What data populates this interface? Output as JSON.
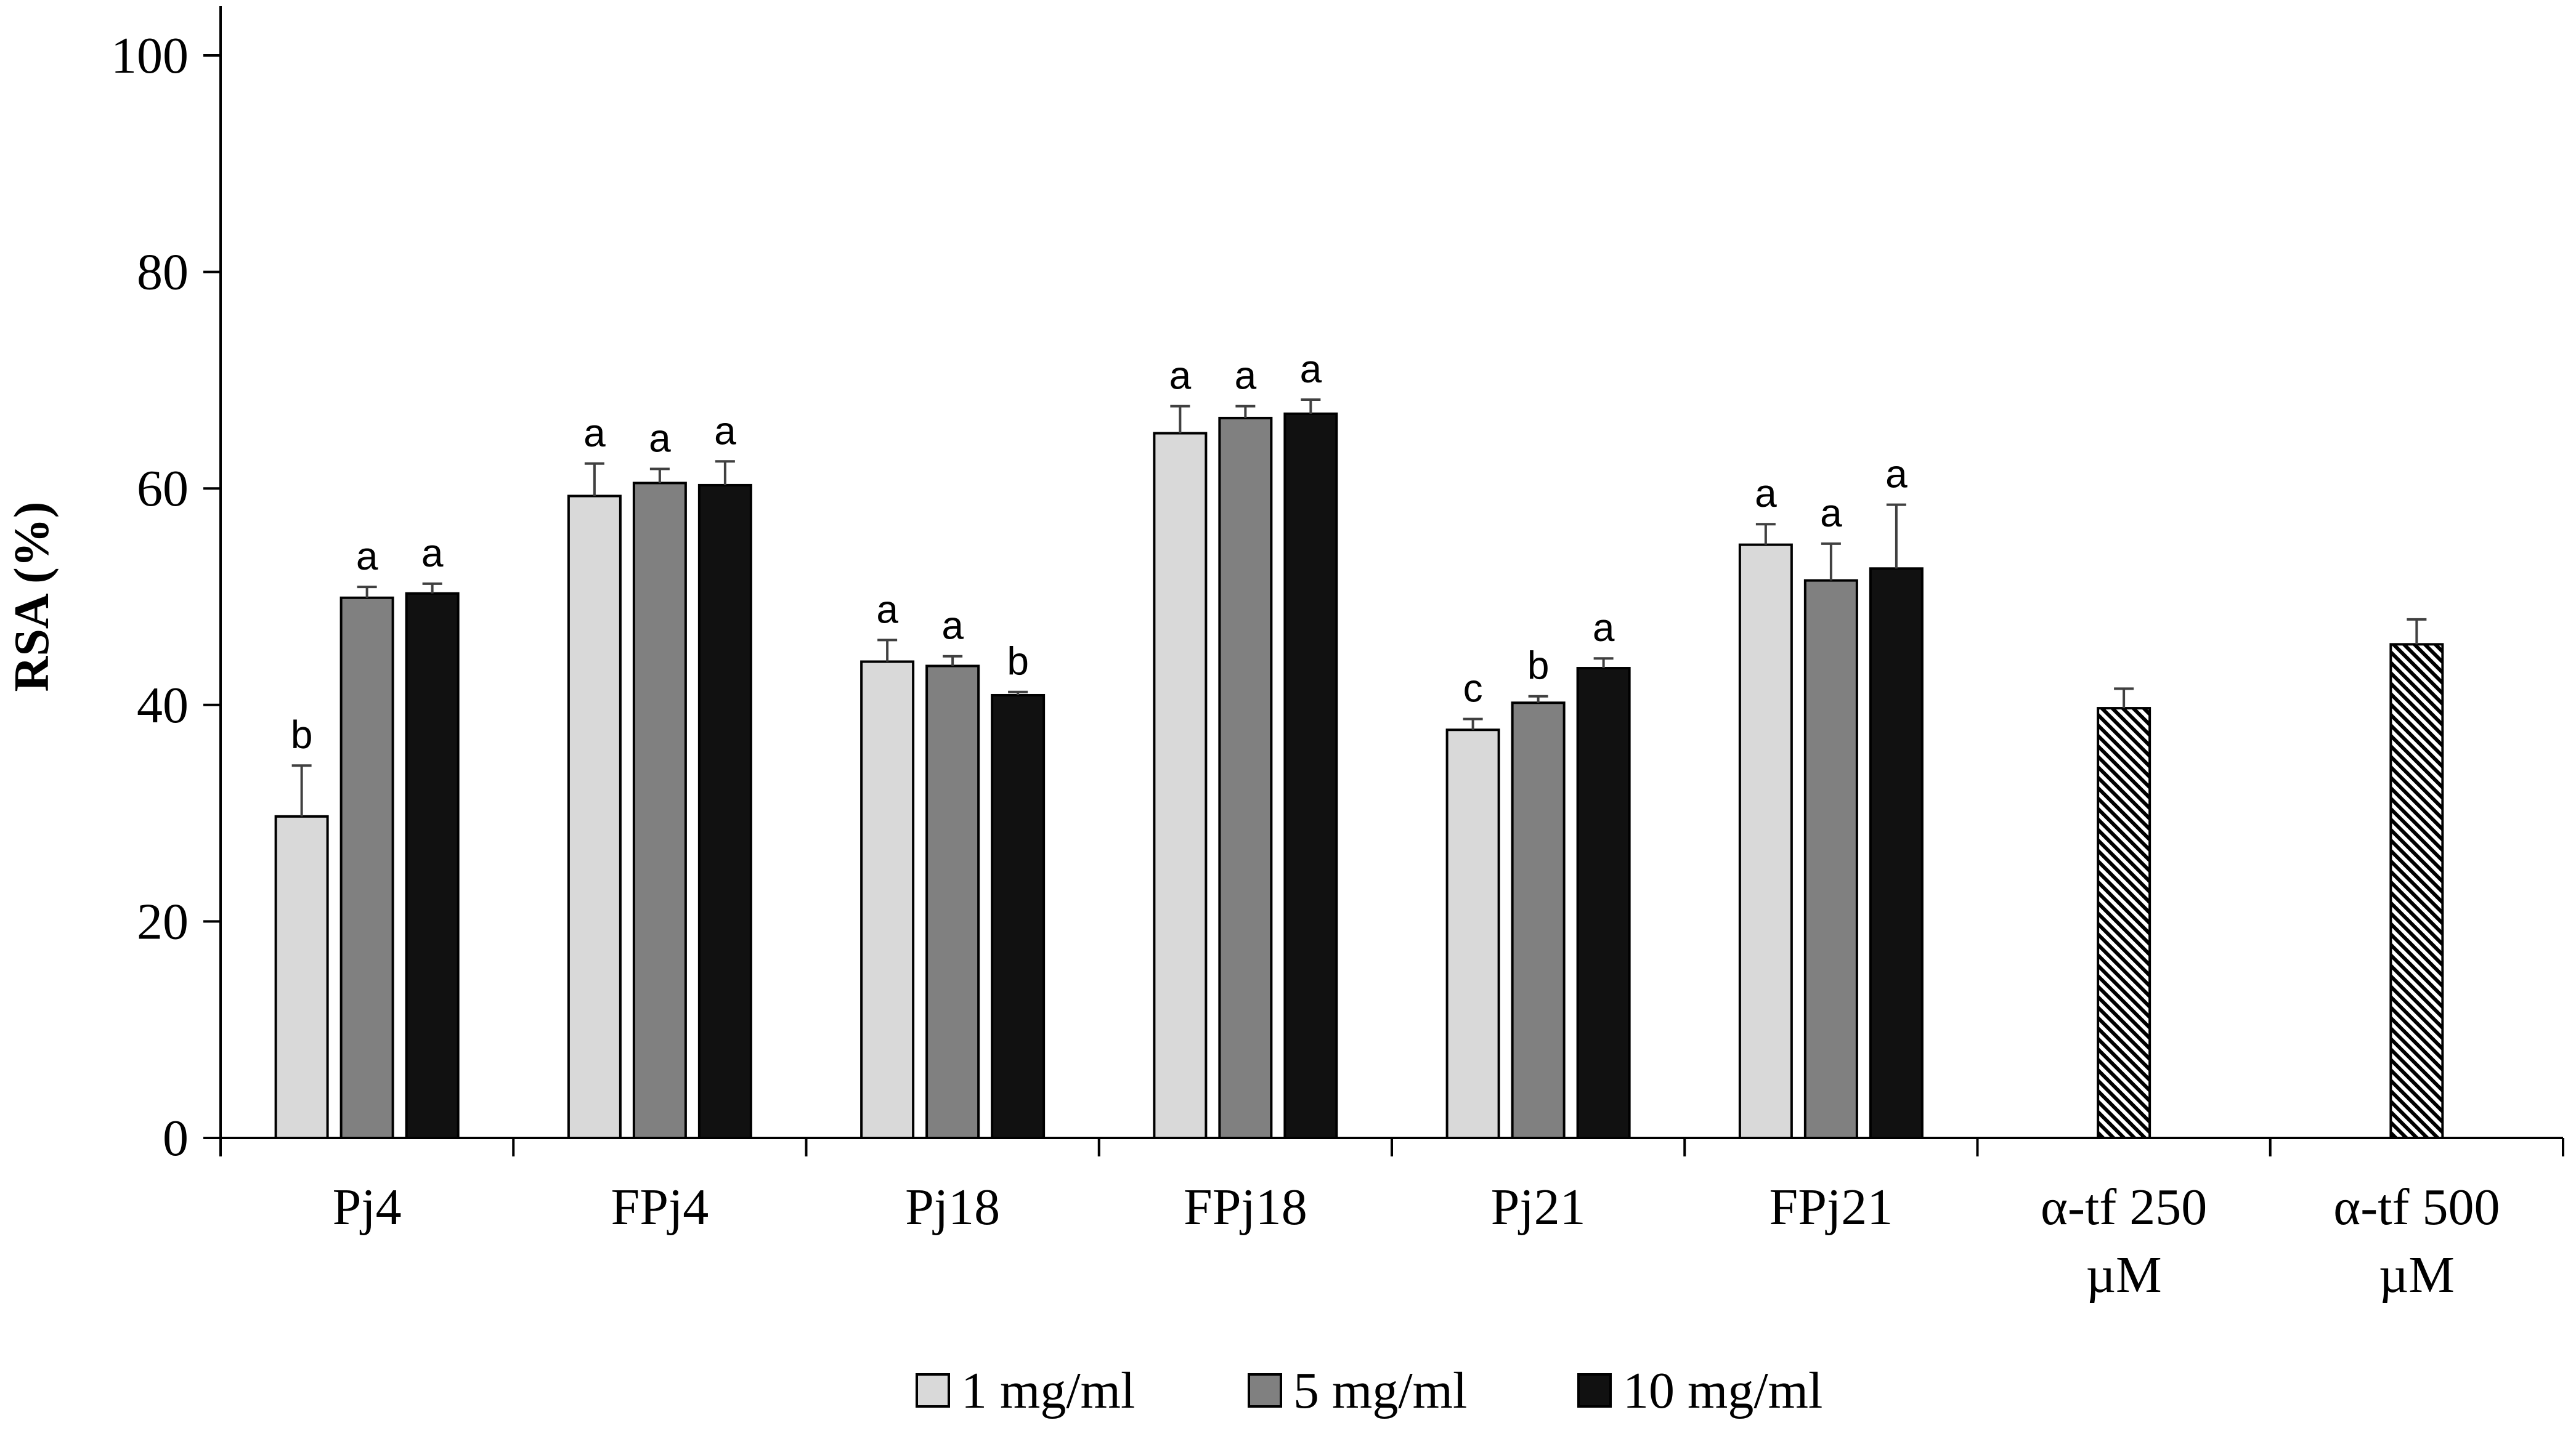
{
  "chart_data": {
    "type": "bar",
    "title": "",
    "ylabel": "RSA (%)",
    "xlabel": "",
    "ylim": [
      0,
      100
    ],
    "yticks": [
      0,
      20,
      40,
      60,
      80,
      100
    ],
    "grid": false,
    "categories": [
      "Pj4",
      "FPj4",
      "Pj18",
      "FPj18",
      "Pj21",
      "FPj21",
      "α-tf 250 µM",
      "α-tf 500 µM"
    ],
    "series": [
      {
        "name": "1 mg/ml",
        "color": "#d9d9d9",
        "values": [
          29.7,
          59.3,
          44.0,
          65.1,
          37.7,
          54.8,
          null,
          null
        ],
        "errors": [
          4.7,
          3.0,
          2.0,
          2.5,
          1.0,
          1.9,
          null,
          null
        ],
        "letters": [
          "b",
          "a",
          "a",
          "a",
          "c",
          "a",
          null,
          null
        ]
      },
      {
        "name": "5 mg/ml",
        "color": "#808080",
        "values": [
          49.9,
          60.5,
          43.6,
          66.5,
          40.2,
          51.5,
          null,
          null
        ],
        "errors": [
          1.0,
          1.3,
          0.9,
          1.1,
          0.6,
          3.4,
          null,
          null
        ],
        "letters": [
          "a",
          "a",
          "a",
          "a",
          "b",
          "a",
          null,
          null
        ]
      },
      {
        "name": "10 mg/ml",
        "color": "#111111",
        "values": [
          50.3,
          60.3,
          40.9,
          66.9,
          43.4,
          52.6,
          null,
          null
        ],
        "errors": [
          0.9,
          2.2,
          0.3,
          1.3,
          0.9,
          5.9,
          null,
          null
        ],
        "letters": [
          "a",
          "a",
          "b",
          "a",
          "a",
          "a",
          null,
          null
        ]
      }
    ],
    "reference": {
      "name": "α-tf",
      "pattern": "diagonal-hatch",
      "values": [
        null,
        null,
        null,
        null,
        null,
        null,
        39.7,
        45.6
      ],
      "errors": [
        null,
        null,
        null,
        null,
        null,
        null,
        1.8,
        2.3
      ]
    },
    "legend": {
      "position": "bottom-center",
      "entries": [
        "1 mg/ml",
        "5 mg/ml",
        "10 mg/ml"
      ]
    }
  }
}
